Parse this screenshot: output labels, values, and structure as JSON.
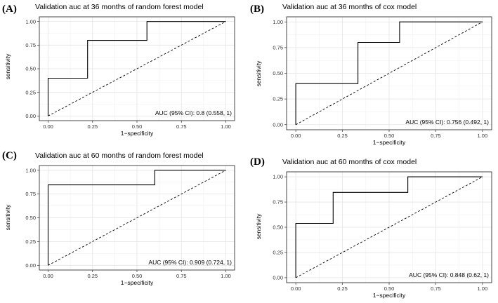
{
  "chart_data": [
    {
      "type": "line",
      "panel_label": "(A)",
      "title": "Validation auc at 36 months of random forest model",
      "xlabel": "1−specificity",
      "ylabel": "sensitivity",
      "xlim": [
        0,
        1
      ],
      "ylim": [
        0,
        1
      ],
      "x_ticks": [
        "0.00",
        "0.25",
        "0.50",
        "0.75",
        "1.00"
      ],
      "y_ticks": [
        "0.00",
        "0.25",
        "0.50",
        "0.75",
        "1.00"
      ],
      "annotation": "AUC (95% CI): 0.8 (0.558, 1)",
      "roc_points": [
        [
          0,
          0
        ],
        [
          0,
          0.4
        ],
        [
          0.222,
          0.4
        ],
        [
          0.222,
          0.8
        ],
        [
          0.556,
          0.8
        ],
        [
          0.556,
          1.0
        ],
        [
          1.0,
          1.0
        ]
      ],
      "reference_line": [
        [
          0,
          0
        ],
        [
          1,
          1
        ]
      ]
    },
    {
      "type": "line",
      "panel_label": "(B)",
      "title": "Validation auc at 36 months of cox model",
      "xlabel": "1−specificity",
      "ylabel": "sensitivity",
      "xlim": [
        0,
        1
      ],
      "ylim": [
        0,
        1
      ],
      "x_ticks": [
        "0.00",
        "0.25",
        "0.50",
        "0.75",
        "1.00"
      ],
      "y_ticks": [
        "0.00",
        "0.25",
        "0.50",
        "0.75",
        "1.00"
      ],
      "annotation": "AUC (95% CI): 0.756 (0.492, 1)",
      "roc_points": [
        [
          0,
          0
        ],
        [
          0,
          0.4
        ],
        [
          0.333,
          0.4
        ],
        [
          0.333,
          0.8
        ],
        [
          0.556,
          0.8
        ],
        [
          0.556,
          1.0
        ],
        [
          1.0,
          1.0
        ]
      ],
      "reference_line": [
        [
          0,
          0
        ],
        [
          1,
          1
        ]
      ]
    },
    {
      "type": "line",
      "panel_label": "(C)",
      "title": "Validation auc at 60 months of random forest model",
      "xlabel": "1−specificity",
      "ylabel": "sensitivity",
      "xlim": [
        0,
        1
      ],
      "ylim": [
        0,
        1
      ],
      "x_ticks": [
        "0.00",
        "0.25",
        "0.50",
        "0.75",
        "1.00"
      ],
      "y_ticks": [
        "0.00",
        "0.25",
        "0.50",
        "0.75",
        "1.00"
      ],
      "annotation": "AUC (95% CI): 0.909 (0.724, 1)",
      "roc_points": [
        [
          0,
          0
        ],
        [
          0,
          0.846
        ],
        [
          0.6,
          0.846
        ],
        [
          0.6,
          1.0
        ],
        [
          1.0,
          1.0
        ]
      ],
      "reference_line": [
        [
          0,
          0
        ],
        [
          1,
          1
        ]
      ]
    },
    {
      "type": "line",
      "panel_label": "(D)",
      "title": "Validation auc at 60 months of cox model",
      "xlabel": "1−specificity",
      "ylabel": "sensitivity",
      "xlim": [
        0,
        1
      ],
      "ylim": [
        0,
        1
      ],
      "x_ticks": [
        "0.00",
        "0.25",
        "0.50",
        "0.75",
        "1.00"
      ],
      "y_ticks": [
        "0.00",
        "0.25",
        "0.50",
        "0.75",
        "1.00"
      ],
      "annotation": "AUC (95% CI): 0.848 (0.62, 1)",
      "roc_points": [
        [
          0,
          0
        ],
        [
          0,
          0.538
        ],
        [
          0.2,
          0.538
        ],
        [
          0.2,
          0.846
        ],
        [
          0.6,
          0.846
        ],
        [
          0.6,
          1.0
        ],
        [
          1.0,
          1.0
        ]
      ],
      "reference_line": [
        [
          0,
          0
        ],
        [
          1,
          1
        ]
      ]
    }
  ]
}
